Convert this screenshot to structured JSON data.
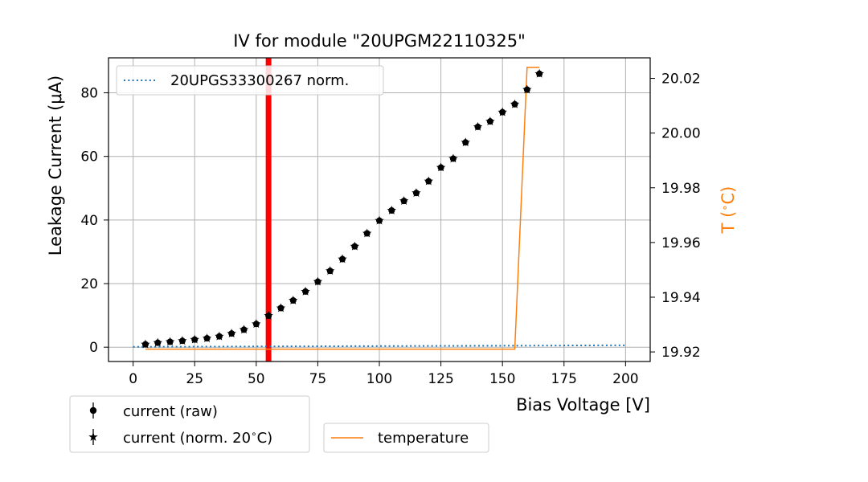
{
  "chart_data": {
    "type": "scatter",
    "title": "IV for module \"20UPGM22110325\"",
    "xlabel": "Bias Voltage [V]",
    "ylabel": "Leakage Current (μA)",
    "y2label": "T ($^\\circ$C)",
    "y2label_parts": [
      "T (",
      "∘",
      "C)"
    ],
    "xlim": [
      -10,
      210
    ],
    "ylim": [
      -4.5,
      91
    ],
    "y2lim": [
      19.9165,
      20.0275
    ],
    "xticks": [
      0,
      25,
      50,
      75,
      100,
      125,
      150,
      175,
      200
    ],
    "yticks": [
      0,
      20,
      40,
      60,
      80
    ],
    "y2ticks": [
      19.92,
      19.94,
      19.96,
      19.98,
      20.0,
      20.02
    ],
    "y2tick_labels": [
      "19.92",
      "19.94",
      "19.96",
      "19.98",
      "20.00",
      "20.02"
    ],
    "grid": true,
    "vertical_marker": {
      "x": 55,
      "color": "#ff0000"
    },
    "series": [
      {
        "name": "current (raw)",
        "marker": "circle",
        "color": "#000000",
        "x": [
          5,
          10,
          15,
          20,
          25,
          30,
          35,
          40,
          45,
          50,
          55,
          60,
          65,
          70,
          75,
          80,
          85,
          90,
          95,
          100,
          105,
          110,
          115,
          120,
          125,
          130,
          135,
          140,
          145,
          150,
          155,
          160,
          165
        ],
        "values": [
          0.9,
          1.4,
          1.7,
          2.0,
          2.4,
          2.8,
          3.4,
          4.3,
          5.5,
          7.3,
          9.9,
          12.3,
          14.7,
          17.5,
          20.6,
          24.0,
          27.7,
          31.7,
          35.8,
          39.8,
          43.0,
          46.0,
          48.5,
          52.2,
          56.5,
          59.3,
          64.4,
          69.3,
          71.0,
          73.9,
          76.4,
          81.0,
          86.0
        ]
      },
      {
        "name": "current (norm. 20$^\\circ$C)",
        "display": "current (norm. 20∘C)",
        "marker": "star",
        "color": "#000000",
        "x": [
          5,
          10,
          15,
          20,
          25,
          30,
          35,
          40,
          45,
          50,
          55,
          60,
          65,
          70,
          75,
          80,
          85,
          90,
          95,
          100,
          105,
          110,
          115,
          120,
          125,
          130,
          135,
          140,
          145,
          150,
          155,
          160,
          165
        ],
        "values": [
          0.9,
          1.4,
          1.7,
          2.0,
          2.4,
          2.8,
          3.4,
          4.3,
          5.5,
          7.3,
          9.9,
          12.3,
          14.7,
          17.5,
          20.6,
          24.0,
          27.7,
          31.7,
          35.8,
          39.8,
          43.0,
          46.0,
          48.5,
          52.2,
          56.5,
          59.3,
          64.4,
          69.3,
          71.0,
          73.9,
          76.4,
          81.0,
          86.0
        ]
      },
      {
        "name": "20UPGS33300267 norm.",
        "style": "dotted",
        "color": "#1f77b4",
        "x": [
          0,
          200
        ],
        "values": [
          0.1,
          0.6
        ]
      },
      {
        "name": "temperature",
        "axis": "right",
        "style": "solid",
        "color": "#ff7f0e",
        "x": [
          5,
          155,
          160,
          165
        ],
        "values": [
          19.921,
          19.921,
          20.024,
          20.024
        ]
      }
    ],
    "legends": {
      "inner": {
        "placement": "upper-left",
        "entries": [
          "20UPGS33300267 norm."
        ]
      },
      "below_left": {
        "entries": [
          "current (raw)",
          "current (norm. 20∘C)"
        ]
      },
      "below_right": {
        "entries": [
          "temperature"
        ]
      }
    }
  }
}
